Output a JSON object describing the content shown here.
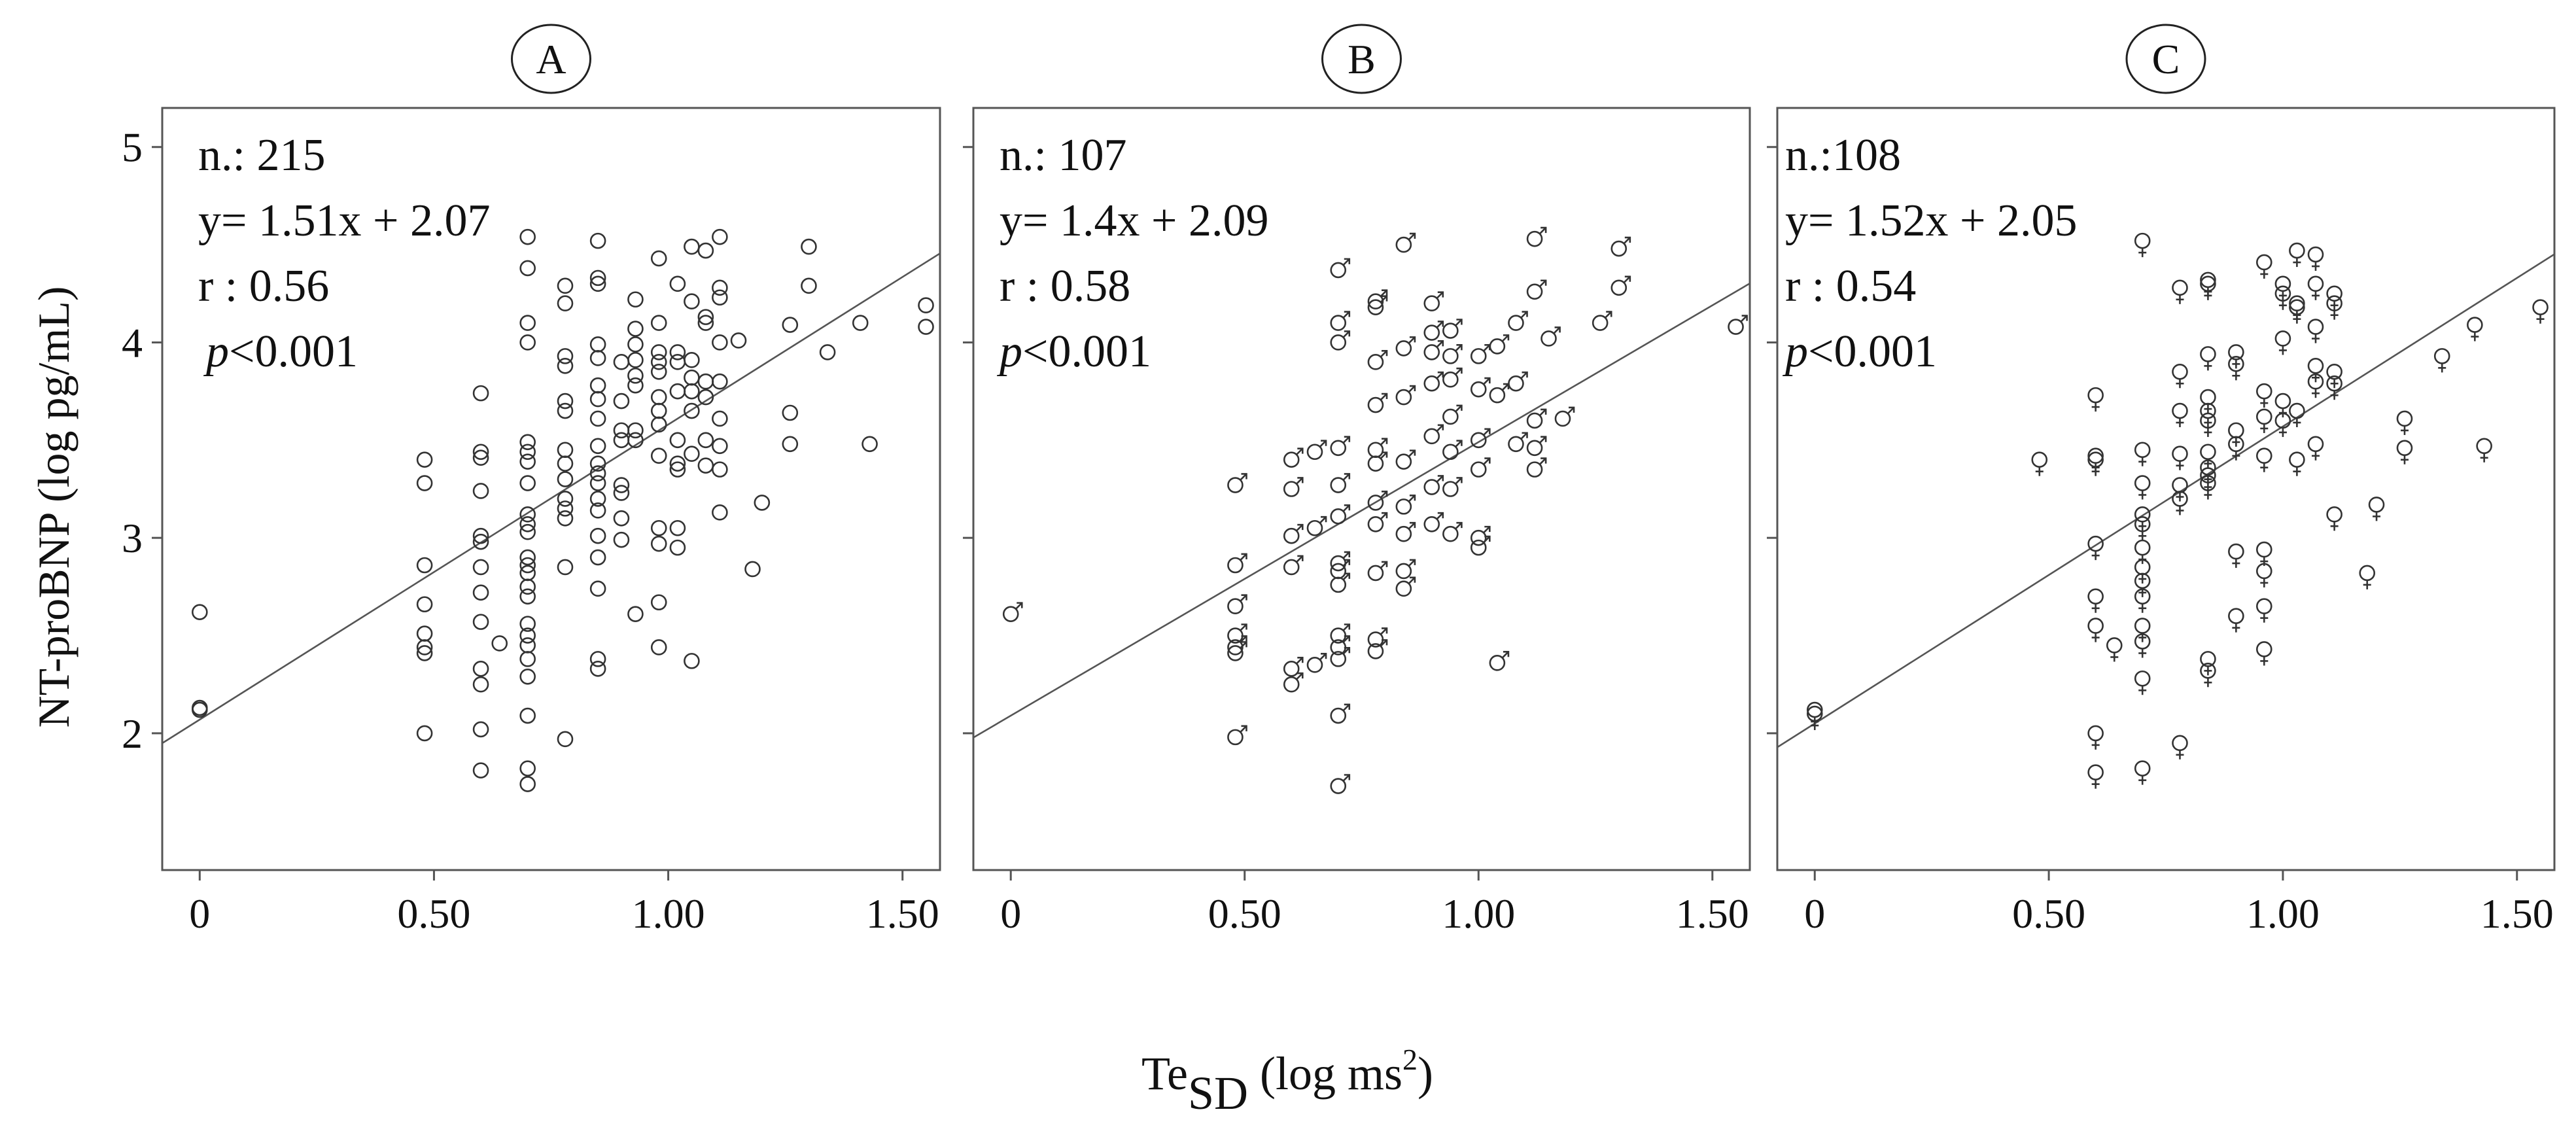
{
  "figure": {
    "ylabel": "NT-proBNP (log pg/mL)",
    "xlabel": {
      "main": "Te",
      "subscript": "SD",
      "units_open": "(log ms",
      "superscript": "2",
      "units_close": ")"
    }
  },
  "colors": {
    "axis": "#555555",
    "points": "#333333",
    "line": "#555555",
    "text": "#111111"
  },
  "chart_data": [
    {
      "type": "scatter",
      "panel_label": "A",
      "marker": "circle",
      "xlim": [
        -0.08,
        1.58
      ],
      "ylim": [
        1.3,
        5.2
      ],
      "xticks": [
        0,
        0.5,
        1.0,
        1.5
      ],
      "xtick_labels": [
        "0",
        "0.50",
        "1.00",
        "1.50"
      ],
      "yticks": [
        2,
        3,
        4,
        5
      ],
      "ytick_labels": [
        "2",
        "3",
        "4",
        "5"
      ],
      "annotations": {
        "n": "n.: 215",
        "equation": "y= 1.51x + 2.07",
        "r": "r : 0.56",
        "p_symbol": "p",
        "p_rest": "<0.001"
      },
      "regression": {
        "slope": 1.51,
        "intercept": 2.07
      },
      "points": [
        [
          0,
          2.62
        ],
        [
          0,
          2.12
        ],
        [
          0,
          2.13
        ],
        [
          0.48,
          3.4
        ],
        [
          0.48,
          3.28
        ],
        [
          0.48,
          2.86
        ],
        [
          0.48,
          2.66
        ],
        [
          0.48,
          2.51
        ],
        [
          0.48,
          2.44
        ],
        [
          0.48,
          2.41
        ],
        [
          0.48,
          2.0
        ],
        [
          0.6,
          3.74
        ],
        [
          0.6,
          3.44
        ],
        [
          0.6,
          3.41
        ],
        [
          0.6,
          3.24
        ],
        [
          0.6,
          3.01
        ],
        [
          0.6,
          2.98
        ],
        [
          0.6,
          2.85
        ],
        [
          0.6,
          2.72
        ],
        [
          0.6,
          2.57
        ],
        [
          0.6,
          2.33
        ],
        [
          0.6,
          2.25
        ],
        [
          0.6,
          2.02
        ],
        [
          0.6,
          1.81
        ],
        [
          0.64,
          2.46
        ],
        [
          0.7,
          4.54
        ],
        [
          0.7,
          4.38
        ],
        [
          0.7,
          4.1
        ],
        [
          0.7,
          4.0
        ],
        [
          0.7,
          3.49
        ],
        [
          0.7,
          3.44
        ],
        [
          0.7,
          3.39
        ],
        [
          0.7,
          3.28
        ],
        [
          0.7,
          3.12
        ],
        [
          0.7,
          3.07
        ],
        [
          0.7,
          3.03
        ],
        [
          0.7,
          2.9
        ],
        [
          0.7,
          2.86
        ],
        [
          0.7,
          2.82
        ],
        [
          0.7,
          2.75
        ],
        [
          0.7,
          2.7
        ],
        [
          0.7,
          2.56
        ],
        [
          0.7,
          2.5
        ],
        [
          0.7,
          2.45
        ],
        [
          0.7,
          2.38
        ],
        [
          0.7,
          2.29
        ],
        [
          0.7,
          2.09
        ],
        [
          0.7,
          1.82
        ],
        [
          0.7,
          1.74
        ],
        [
          0.78,
          4.29
        ],
        [
          0.78,
          4.2
        ],
        [
          0.78,
          3.93
        ],
        [
          0.78,
          3.88
        ],
        [
          0.78,
          3.7
        ],
        [
          0.78,
          3.65
        ],
        [
          0.78,
          3.45
        ],
        [
          0.78,
          3.38
        ],
        [
          0.78,
          3.3
        ],
        [
          0.78,
          3.2
        ],
        [
          0.78,
          3.15
        ],
        [
          0.78,
          3.1
        ],
        [
          0.78,
          2.85
        ],
        [
          0.78,
          1.97
        ],
        [
          0.85,
          4.52
        ],
        [
          0.85,
          4.33
        ],
        [
          0.85,
          4.3
        ],
        [
          0.85,
          3.99
        ],
        [
          0.85,
          3.92
        ],
        [
          0.85,
          3.78
        ],
        [
          0.85,
          3.71
        ],
        [
          0.85,
          3.61
        ],
        [
          0.85,
          3.47
        ],
        [
          0.85,
          3.38
        ],
        [
          0.85,
          3.33
        ],
        [
          0.85,
          3.28
        ],
        [
          0.85,
          3.2
        ],
        [
          0.85,
          3.14
        ],
        [
          0.85,
          3.01
        ],
        [
          0.85,
          2.9
        ],
        [
          0.85,
          2.74
        ],
        [
          0.85,
          2.38
        ],
        [
          0.85,
          2.33
        ],
        [
          0.9,
          3.9
        ],
        [
          0.9,
          3.7
        ],
        [
          0.9,
          3.55
        ],
        [
          0.9,
          3.5
        ],
        [
          0.9,
          3.27
        ],
        [
          0.9,
          3.23
        ],
        [
          0.9,
          3.1
        ],
        [
          0.9,
          2.99
        ],
        [
          0.93,
          4.22
        ],
        [
          0.93,
          4.07
        ],
        [
          0.93,
          3.99
        ],
        [
          0.93,
          3.91
        ],
        [
          0.93,
          3.83
        ],
        [
          0.93,
          3.78
        ],
        [
          0.93,
          3.55
        ],
        [
          0.93,
          3.5
        ],
        [
          0.93,
          2.61
        ],
        [
          0.98,
          4.43
        ],
        [
          0.98,
          4.1
        ],
        [
          0.98,
          3.95
        ],
        [
          0.98,
          3.9
        ],
        [
          0.98,
          3.85
        ],
        [
          0.98,
          3.72
        ],
        [
          0.98,
          3.65
        ],
        [
          0.98,
          3.58
        ],
        [
          0.98,
          3.42
        ],
        [
          0.98,
          3.05
        ],
        [
          0.98,
          2.97
        ],
        [
          0.98,
          2.67
        ],
        [
          0.98,
          2.44
        ],
        [
          1.02,
          4.3
        ],
        [
          1.02,
          3.95
        ],
        [
          1.02,
          3.9
        ],
        [
          1.02,
          3.75
        ],
        [
          1.02,
          3.5
        ],
        [
          1.02,
          3.38
        ],
        [
          1.02,
          3.35
        ],
        [
          1.02,
          3.05
        ],
        [
          1.02,
          2.95
        ],
        [
          1.05,
          4.49
        ],
        [
          1.05,
          4.21
        ],
        [
          1.05,
          3.91
        ],
        [
          1.05,
          3.82
        ],
        [
          1.05,
          3.75
        ],
        [
          1.05,
          3.65
        ],
        [
          1.05,
          3.43
        ],
        [
          1.05,
          2.37
        ],
        [
          1.08,
          4.47
        ],
        [
          1.08,
          4.13
        ],
        [
          1.08,
          4.1
        ],
        [
          1.08,
          3.8
        ],
        [
          1.08,
          3.72
        ],
        [
          1.08,
          3.5
        ],
        [
          1.08,
          3.37
        ],
        [
          1.11,
          4.54
        ],
        [
          1.11,
          4.28
        ],
        [
          1.11,
          4.23
        ],
        [
          1.11,
          4.0
        ],
        [
          1.11,
          3.8
        ],
        [
          1.11,
          3.61
        ],
        [
          1.11,
          3.47
        ],
        [
          1.11,
          3.35
        ],
        [
          1.11,
          3.13
        ],
        [
          1.15,
          4.01
        ],
        [
          1.18,
          2.84
        ],
        [
          1.2,
          3.18
        ],
        [
          1.26,
          4.09
        ],
        [
          1.26,
          3.64
        ],
        [
          1.26,
          3.48
        ],
        [
          1.3,
          4.49
        ],
        [
          1.3,
          4.29
        ],
        [
          1.34,
          3.95
        ],
        [
          1.41,
          4.1
        ],
        [
          1.43,
          3.48
        ],
        [
          1.55,
          4.19
        ],
        [
          1.55,
          4.08
        ]
      ]
    },
    {
      "type": "scatter",
      "panel_label": "B",
      "marker": "male symbol",
      "xlim": [
        -0.08,
        1.58
      ],
      "ylim": [
        1.3,
        5.2
      ],
      "xticks": [
        0,
        0.5,
        1.0,
        1.5
      ],
      "xtick_labels": [
        "0",
        "0.50",
        "1.00",
        "1.50"
      ],
      "yticks": [
        2,
        3,
        4,
        5
      ],
      "ytick_labels": [
        "",
        "",
        "",
        ""
      ],
      "annotations": {
        "n": "n.: 107",
        "equation": "y= 1.4x + 2.09",
        "r": "r : 0.58",
        "p_symbol": "p",
        "p_rest": "<0.001"
      },
      "regression": {
        "slope": 1.4,
        "intercept": 2.09
      },
      "points": [
        [
          0,
          2.61
        ],
        [
          0.48,
          3.27
        ],
        [
          0.48,
          2.86
        ],
        [
          0.48,
          2.65
        ],
        [
          0.48,
          2.5
        ],
        [
          0.48,
          2.44
        ],
        [
          0.48,
          2.41
        ],
        [
          0.48,
          1.98
        ],
        [
          0.6,
          3.4
        ],
        [
          0.6,
          3.25
        ],
        [
          0.6,
          3.01
        ],
        [
          0.6,
          2.85
        ],
        [
          0.6,
          2.33
        ],
        [
          0.6,
          2.25
        ],
        [
          0.65,
          3.44
        ],
        [
          0.65,
          3.05
        ],
        [
          0.65,
          2.35
        ],
        [
          0.7,
          4.37
        ],
        [
          0.7,
          4.1
        ],
        [
          0.7,
          4.0
        ],
        [
          0.7,
          3.46
        ],
        [
          0.7,
          3.27
        ],
        [
          0.7,
          3.11
        ],
        [
          0.7,
          2.87
        ],
        [
          0.7,
          2.83
        ],
        [
          0.7,
          2.76
        ],
        [
          0.7,
          2.5
        ],
        [
          0.7,
          2.44
        ],
        [
          0.7,
          2.38
        ],
        [
          0.7,
          2.09
        ],
        [
          0.7,
          1.73
        ],
        [
          0.78,
          4.21
        ],
        [
          0.78,
          4.18
        ],
        [
          0.78,
          3.9
        ],
        [
          0.78,
          3.68
        ],
        [
          0.78,
          3.45
        ],
        [
          0.78,
          3.38
        ],
        [
          0.78,
          3.18
        ],
        [
          0.78,
          3.07
        ],
        [
          0.78,
          2.82
        ],
        [
          0.78,
          2.48
        ],
        [
          0.78,
          2.42
        ],
        [
          0.84,
          4.5
        ],
        [
          0.84,
          3.97
        ],
        [
          0.84,
          3.72
        ],
        [
          0.84,
          3.39
        ],
        [
          0.84,
          3.16
        ],
        [
          0.84,
          3.02
        ],
        [
          0.84,
          2.83
        ],
        [
          0.84,
          2.74
        ],
        [
          0.9,
          4.2
        ],
        [
          0.9,
          4.05
        ],
        [
          0.9,
          3.95
        ],
        [
          0.9,
          3.79
        ],
        [
          0.9,
          3.52
        ],
        [
          0.9,
          3.26
        ],
        [
          0.9,
          3.07
        ],
        [
          0.94,
          4.06
        ],
        [
          0.94,
          3.93
        ],
        [
          0.94,
          3.81
        ],
        [
          0.94,
          3.62
        ],
        [
          0.94,
          3.44
        ],
        [
          0.94,
          3.25
        ],
        [
          0.94,
          3.02
        ],
        [
          1.0,
          3.93
        ],
        [
          1.0,
          3.76
        ],
        [
          1.0,
          3.5
        ],
        [
          1.0,
          3.35
        ],
        [
          1.0,
          3.0
        ],
        [
          1.0,
          2.95
        ],
        [
          1.04,
          3.98
        ],
        [
          1.04,
          3.73
        ],
        [
          1.04,
          2.36
        ],
        [
          1.08,
          4.1
        ],
        [
          1.08,
          3.79
        ],
        [
          1.08,
          3.48
        ],
        [
          1.12,
          4.53
        ],
        [
          1.12,
          4.26
        ],
        [
          1.12,
          3.6
        ],
        [
          1.12,
          3.46
        ],
        [
          1.12,
          3.35
        ],
        [
          1.15,
          4.02
        ],
        [
          1.18,
          3.61
        ],
        [
          1.26,
          4.1
        ],
        [
          1.3,
          4.48
        ],
        [
          1.3,
          4.28
        ],
        [
          1.55,
          4.08
        ]
      ]
    },
    {
      "type": "scatter",
      "panel_label": "C",
      "marker": "female symbol",
      "xlim": [
        -0.08,
        1.58
      ],
      "ylim": [
        1.3,
        5.2
      ],
      "xticks": [
        0,
        0.5,
        1.0,
        1.5
      ],
      "xtick_labels": [
        "0",
        "0.50",
        "1.00",
        "1.50"
      ],
      "yticks": [
        2,
        3,
        4,
        5
      ],
      "ytick_labels": [
        "",
        "",
        "",
        ""
      ],
      "annotations": {
        "n": "n.:108",
        "equation": "y= 1.52x + 2.05",
        "r": "r : 0.54",
        "p_symbol": "p",
        "p_rest": "<0.001"
      },
      "regression": {
        "slope": 1.52,
        "intercept": 2.05
      },
      "points": [
        [
          0,
          2.12
        ],
        [
          0,
          2.1
        ],
        [
          0.48,
          3.4
        ],
        [
          0.6,
          3.73
        ],
        [
          0.6,
          3.42
        ],
        [
          0.6,
          3.4
        ],
        [
          0.6,
          2.97
        ],
        [
          0.6,
          2.7
        ],
        [
          0.6,
          2.55
        ],
        [
          0.6,
          2.0
        ],
        [
          0.6,
          1.8
        ],
        [
          0.64,
          2.45
        ],
        [
          0.7,
          4.52
        ],
        [
          0.7,
          3.45
        ],
        [
          0.7,
          3.28
        ],
        [
          0.7,
          3.12
        ],
        [
          0.7,
          3.07
        ],
        [
          0.7,
          2.95
        ],
        [
          0.7,
          2.85
        ],
        [
          0.7,
          2.78
        ],
        [
          0.7,
          2.7
        ],
        [
          0.7,
          2.55
        ],
        [
          0.7,
          2.47
        ],
        [
          0.7,
          2.28
        ],
        [
          0.7,
          1.82
        ],
        [
          0.78,
          4.28
        ],
        [
          0.78,
          3.85
        ],
        [
          0.78,
          3.65
        ],
        [
          0.78,
          3.43
        ],
        [
          0.78,
          3.27
        ],
        [
          0.78,
          3.2
        ],
        [
          0.78,
          1.95
        ],
        [
          0.84,
          4.32
        ],
        [
          0.84,
          4.3
        ],
        [
          0.84,
          3.94
        ],
        [
          0.84,
          3.72
        ],
        [
          0.84,
          3.65
        ],
        [
          0.84,
          3.6
        ],
        [
          0.84,
          3.44
        ],
        [
          0.84,
          3.36
        ],
        [
          0.84,
          3.32
        ],
        [
          0.84,
          3.28
        ],
        [
          0.84,
          2.38
        ],
        [
          0.84,
          2.32
        ],
        [
          0.9,
          3.95
        ],
        [
          0.9,
          3.89
        ],
        [
          0.9,
          3.55
        ],
        [
          0.9,
          3.48
        ],
        [
          0.9,
          2.93
        ],
        [
          0.9,
          2.6
        ],
        [
          0.96,
          4.41
        ],
        [
          0.96,
          3.75
        ],
        [
          0.96,
          3.62
        ],
        [
          0.96,
          3.42
        ],
        [
          0.96,
          2.94
        ],
        [
          0.96,
          2.83
        ],
        [
          0.96,
          2.65
        ],
        [
          0.96,
          2.43
        ],
        [
          1.0,
          4.3
        ],
        [
          1.0,
          4.25
        ],
        [
          1.0,
          4.02
        ],
        [
          1.0,
          3.7
        ],
        [
          1.0,
          3.6
        ],
        [
          1.03,
          4.47
        ],
        [
          1.03,
          4.2
        ],
        [
          1.03,
          4.18
        ],
        [
          1.03,
          3.65
        ],
        [
          1.03,
          3.4
        ],
        [
          1.07,
          4.45
        ],
        [
          1.07,
          4.3
        ],
        [
          1.07,
          4.08
        ],
        [
          1.07,
          3.88
        ],
        [
          1.07,
          3.8
        ],
        [
          1.07,
          3.48
        ],
        [
          1.11,
          4.25
        ],
        [
          1.11,
          4.2
        ],
        [
          1.11,
          3.85
        ],
        [
          1.11,
          3.79
        ],
        [
          1.11,
          3.12
        ],
        [
          1.18,
          2.82
        ],
        [
          1.2,
          3.17
        ],
        [
          1.26,
          3.61
        ],
        [
          1.26,
          3.46
        ],
        [
          1.34,
          3.93
        ],
        [
          1.41,
          4.09
        ],
        [
          1.43,
          3.47
        ],
        [
          1.55,
          4.18
        ]
      ]
    }
  ]
}
